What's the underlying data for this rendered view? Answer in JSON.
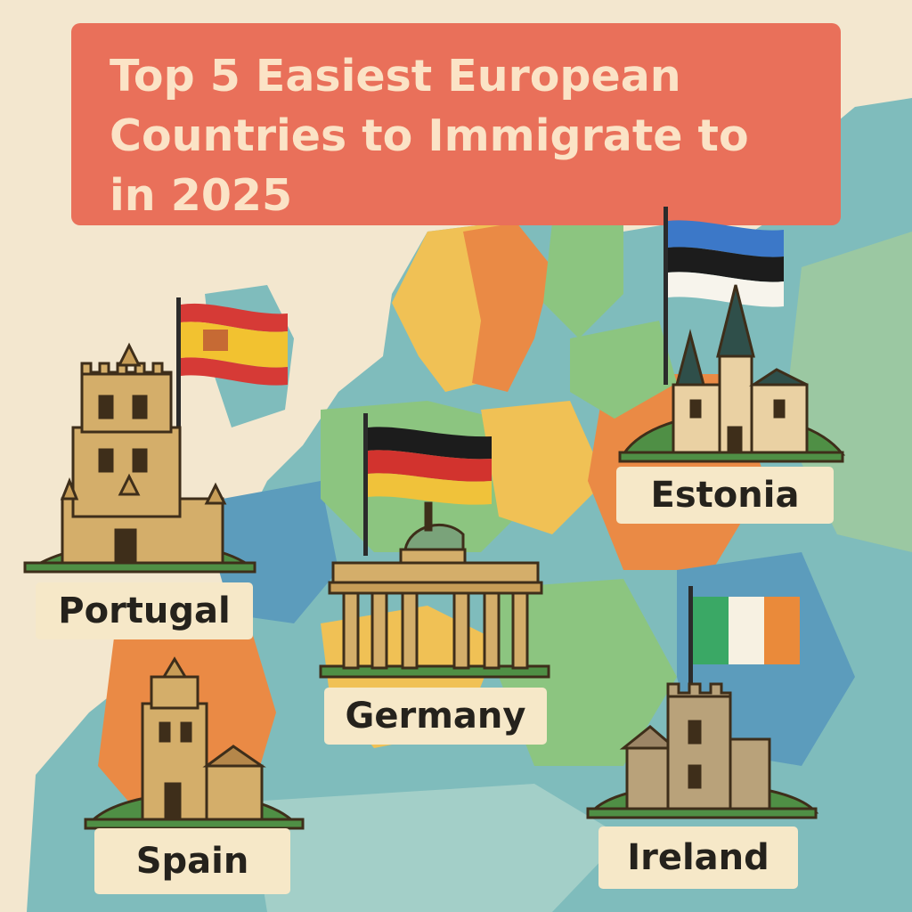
{
  "title": {
    "lines": [
      "Top 5 Easiest European",
      "Countries to Immigrate to",
      "in 2025"
    ]
  },
  "countries": [
    {
      "name": "Portugal",
      "landmark": "portuguese-tower-icon"
    },
    {
      "name": "Spain",
      "landmark": "spanish-castle-icon"
    },
    {
      "name": "Germany",
      "landmark": "brandenburg-gate-icon"
    },
    {
      "name": "Estonia",
      "landmark": "estonian-church-icon"
    },
    {
      "name": "Ireland",
      "landmark": "irish-castle-icon"
    }
  ],
  "flags": [
    {
      "name": "spain-flag-icon",
      "colors": [
        "#d63a36",
        "#f2c230",
        "#d63a36"
      ]
    },
    {
      "name": "germany-flag-icon",
      "colors": [
        "#1c1c1c",
        "#d2332e",
        "#f0c23a"
      ]
    },
    {
      "name": "estonia-flag-icon",
      "colors": [
        "#3c78c8",
        "#1c1c1c",
        "#f7f4ec"
      ]
    },
    {
      "name": "ireland-flag-icon",
      "colors": [
        "#3aa865",
        "#f7f1e2",
        "#ea8a3a"
      ]
    }
  ],
  "palette": {
    "background": "#f3e7cf",
    "title_box": "#e9705a",
    "title_text": "#fbe3c6",
    "label_box": "#f6e8c8",
    "label_text": "#25221c"
  }
}
